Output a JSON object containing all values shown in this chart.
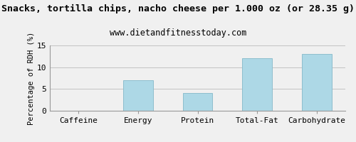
{
  "title": "Snacks, tortilla chips, nacho cheese per 1.000 oz (or 28.35 g)",
  "subtitle": "www.dietandfitnesstoday.com",
  "categories": [
    "Caffeine",
    "Energy",
    "Protein",
    "Total-Fat",
    "Carbohydrate"
  ],
  "values": [
    0,
    7.0,
    4.0,
    12.0,
    13.0
  ],
  "bar_color": "#add8e6",
  "bar_edge_color": "#8ebece",
  "ylabel": "Percentage of RDH (%)",
  "ylim": [
    0,
    15
  ],
  "yticks": [
    0,
    5,
    10,
    15
  ],
  "background_color": "#f0f0f0",
  "plot_bg_color": "#f0f0f0",
  "grid_color": "#bbbbbb",
  "title_fontsize": 9.5,
  "subtitle_fontsize": 8.5,
  "axis_label_fontsize": 7.5,
  "tick_fontsize": 8
}
